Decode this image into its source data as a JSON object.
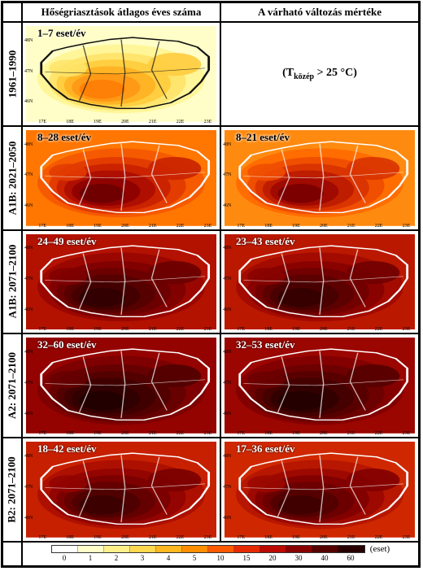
{
  "headers": {
    "col1": "Hőségriasztások átlagos éves száma",
    "col2": "A várható változás mértéke"
  },
  "condition_text_before": "(T",
  "condition_text_sub": "közép",
  "condition_text_after": " > 25 °C)",
  "rows": [
    {
      "label": "1961–1990",
      "left": {
        "text": "1–7 eset/év",
        "palette_key": "p0"
      },
      "right": {
        "is_text": true
      }
    },
    {
      "label": "A1B: 2021–2050",
      "left": {
        "text": "8–28 eset/év",
        "palette_key": "p1"
      },
      "right": {
        "text": "8–21 eset/év",
        "palette_key": "p1b"
      }
    },
    {
      "label": "A1B: 2071–2100",
      "left": {
        "text": "24–49 eset/év",
        "palette_key": "p2"
      },
      "right": {
        "text": "23–43 eset/év",
        "palette_key": "p2b"
      }
    },
    {
      "label": "A2: 2071–2100",
      "left": {
        "text": "32–60 eset/év",
        "palette_key": "p3"
      },
      "right": {
        "text": "32–53 eset/év",
        "palette_key": "p3b"
      }
    },
    {
      "label": "B2: 2071–2100",
      "left": {
        "text": "18–42 eset/év",
        "palette_key": "p4"
      },
      "right": {
        "text": "17–36 eset/év",
        "palette_key": "p4b"
      }
    }
  ],
  "axis_ticks": {
    "x": [
      "17E",
      "18E",
      "19E",
      "20E",
      "21E",
      "22E",
      "23E"
    ],
    "y": [
      "46N",
      "47N",
      "48N"
    ]
  },
  "palettes": {
    "p0": [
      "#fffec8",
      "#fff597",
      "#ffe46a",
      "#ffcc3f",
      "#ffb224",
      "#ff9815",
      "#ff7e05"
    ],
    "p1": [
      "#ff7600",
      "#f55800",
      "#e23b00",
      "#c92200",
      "#ad0f00",
      "#8e0200",
      "#6f0000"
    ],
    "p1b": [
      "#ff8a10",
      "#ff6c00",
      "#f04e00",
      "#d83300",
      "#bd1c00",
      "#9e0a00",
      "#7b0000"
    ],
    "p2": [
      "#b31200",
      "#990700",
      "#800000",
      "#6a0000",
      "#560000",
      "#430000",
      "#320000"
    ],
    "p2b": [
      "#bb1800",
      "#a10b00",
      "#880200",
      "#710000",
      "#5c0000",
      "#480000",
      "#360000"
    ],
    "p3": [
      "#940300",
      "#7c0000",
      "#660000",
      "#520000",
      "#400000",
      "#300000",
      "#220000"
    ],
    "p3b": [
      "#9b0600",
      "#830000",
      "#6c0000",
      "#570000",
      "#440000",
      "#330000",
      "#240000"
    ],
    "p4": [
      "#c72000",
      "#ac1000",
      "#920400",
      "#7a0000",
      "#630000",
      "#4e0000",
      "#3b0000"
    ],
    "p4b": [
      "#cf2800",
      "#b51600",
      "#9b0800",
      "#820000",
      "#6a0000",
      "#540000",
      "#400000"
    ]
  },
  "legend": {
    "values": [
      "0",
      "1",
      "2",
      "3",
      "4",
      "5",
      "10",
      "15",
      "20",
      "30",
      "40",
      "60"
    ],
    "colors": [
      "#ffffff",
      "#fffec8",
      "#fff08a",
      "#ffd850",
      "#ffb820",
      "#ff8e00",
      "#ff5a00",
      "#e52a00",
      "#bb0a00",
      "#880000",
      "#550000",
      "#280000"
    ],
    "unit": "(eset)"
  },
  "border_outline_color": "#ffffff",
  "border_outline_color_dark": "#101010"
}
